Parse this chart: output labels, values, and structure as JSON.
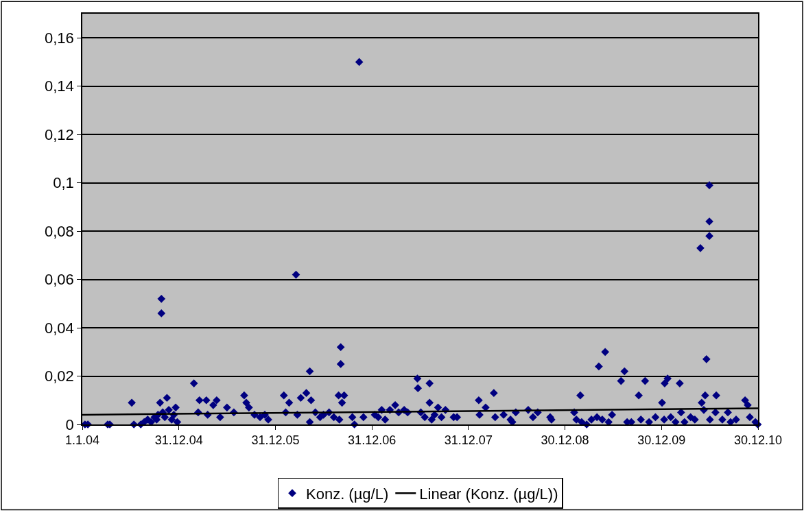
{
  "chart_data": {
    "type": "scatter",
    "xlim": [
      "2004-01-01",
      "2010-12-30"
    ],
    "xticks": [
      {
        "value": "2004-01-01",
        "label": "1.1.04"
      },
      {
        "value": "2004-12-31",
        "label": "31.12.04"
      },
      {
        "value": "2005-12-31",
        "label": "31.12.05"
      },
      {
        "value": "2006-12-31",
        "label": "31.12.06"
      },
      {
        "value": "2007-12-31",
        "label": "31.12.07"
      },
      {
        "value": "2008-12-30",
        "label": "30.12.08"
      },
      {
        "value": "2009-12-30",
        "label": "30.12.09"
      },
      {
        "value": "2010-12-30",
        "label": "30.12.10"
      }
    ],
    "ylim": [
      0,
      0.17
    ],
    "yticks": [
      0,
      {
        "value": 0.02,
        "label": "0,02"
      },
      {
        "value": 0.04,
        "label": "0,04"
      },
      {
        "value": 0.06,
        "label": "0,06"
      },
      {
        "value": 0.08,
        "label": "0,08"
      },
      {
        "value": 0.1,
        "label": "0,1"
      },
      {
        "value": 0.12,
        "label": "0,12"
      },
      {
        "value": 0.14,
        "label": "0,14"
      },
      {
        "value": 0.16,
        "label": "0,16"
      }
    ],
    "grid": "y",
    "legend": "bottom",
    "series": [
      {
        "name": "Konz. (µg/L)",
        "marker": "diamond",
        "color": "#000080",
        "x": [
          "2004-01-11",
          "2004-01-22",
          "2004-04-06",
          "2004-04-14",
          "2004-07-06",
          "2004-07-14",
          "2004-08-09",
          "2004-08-22",
          "2004-09-04",
          "2004-09-17",
          "2004-09-30",
          "2004-10-08",
          "2004-10-13",
          "2004-10-21",
          "2004-10-26",
          "2004-10-26",
          "2004-10-31",
          "2004-11-08",
          "2004-11-16",
          "2004-11-23",
          "2004-12-04",
          "2004-12-12",
          "2004-12-19",
          "2004-12-25",
          "2005-02-26",
          "2005-03-14",
          "2005-03-19",
          "2005-04-14",
          "2005-04-19",
          "2005-05-10",
          "2005-05-23",
          "2005-06-05",
          "2005-07-01",
          "2005-07-27",
          "2005-09-04",
          "2005-09-12",
          "2005-09-22",
          "2005-10-13",
          "2005-11-03",
          "2005-11-21",
          "2005-12-04",
          "2006-02-01",
          "2006-02-08",
          "2006-02-21",
          "2006-03-19",
          "2006-03-24",
          "2006-04-06",
          "2006-04-27",
          "2006-05-10",
          "2006-05-10",
          "2006-05-15",
          "2006-05-31",
          "2006-06-18",
          "2006-07-01",
          "2006-07-22",
          "2006-08-09",
          "2006-08-27",
          "2006-08-30",
          "2006-09-04",
          "2006-09-04",
          "2006-09-09",
          "2006-09-17",
          "2006-10-18",
          "2006-10-26",
          "2006-11-13",
          "2006-11-29",
          "2007-01-11",
          "2007-01-24",
          "2007-02-06",
          "2007-02-19",
          "2007-03-09",
          "2007-03-29",
          "2007-04-11",
          "2007-05-02",
          "2007-05-15",
          "2007-06-21",
          "2007-06-23",
          "2007-07-04",
          "2007-07-19",
          "2007-08-06",
          "2007-08-06",
          "2007-08-14",
          "2007-08-25",
          "2007-09-07",
          "2007-09-20",
          "2007-10-05",
          "2007-11-05",
          "2007-11-18",
          "2008-02-08",
          "2008-02-11",
          "2008-03-05",
          "2008-04-05",
          "2008-04-10",
          "2008-05-12",
          "2008-06-07",
          "2008-06-14",
          "2008-06-27",
          "2008-08-13",
          "2008-08-31",
          "2008-09-18",
          "2008-11-04",
          "2008-11-09",
          "2009-02-03",
          "2009-02-11",
          "2009-02-26",
          "2009-03-03",
          "2009-03-22",
          "2009-04-09",
          "2009-04-30",
          "2009-05-07",
          "2009-05-20",
          "2009-05-31",
          "2009-06-13",
          "2009-06-26",
          "2009-07-30",
          "2009-08-12",
          "2009-08-22",
          "2009-09-07",
          "2009-10-05",
          "2009-10-13",
          "2009-10-29",
          "2009-11-13",
          "2009-12-07",
          "2010-01-01",
          "2010-01-09",
          "2010-01-11",
          "2010-01-22",
          "2010-02-03",
          "2010-02-21",
          "2010-03-09",
          "2010-03-14",
          "2010-03-27",
          "2010-04-19",
          "2010-05-05",
          "2010-05-26",
          "2010-05-31",
          "2010-06-08",
          "2010-06-13",
          "2010-06-18",
          "2010-06-29",
          "2010-06-29",
          "2010-06-29",
          "2010-07-01",
          "2010-07-22",
          "2010-07-25",
          "2010-08-17",
          "2010-09-07",
          "2010-09-17",
          "2010-10-08",
          "2010-11-11",
          "2010-11-21",
          "2010-11-29",
          "2010-12-20",
          "2010-12-29"
        ],
        "values": [
          0,
          0,
          0,
          0,
          0.009,
          0,
          0,
          0.001,
          0.002,
          0.001,
          0.003,
          0.002,
          0.004,
          0.009,
          0.052,
          0.046,
          0.005,
          0.003,
          0.011,
          0.006,
          0.002,
          0.004,
          0.007,
          0.001,
          0.017,
          0.005,
          0.01,
          0.01,
          0.004,
          0.008,
          0.01,
          0.003,
          0.007,
          0.005,
          0.012,
          0.009,
          0.007,
          0.004,
          0.003,
          0.004,
          0.002,
          0.012,
          0.005,
          0.009,
          0.062,
          0.004,
          0.011,
          0.013,
          0.022,
          0.001,
          0.01,
          0.005,
          0.003,
          0.004,
          0.005,
          0.003,
          0.012,
          0.002,
          0.032,
          0.025,
          0.009,
          0.012,
          0.003,
          0.0,
          0.15,
          0.003,
          0.004,
          0.003,
          0.006,
          0.002,
          0.006,
          0.008,
          0.005,
          0.006,
          0.005,
          0.019,
          0.015,
          0.005,
          0.003,
          0.017,
          0.009,
          0.002,
          0.004,
          0.007,
          0.003,
          0.006,
          0.003,
          0.003,
          0.01,
          0.004,
          0.007,
          0.013,
          0.003,
          0.004,
          0.002,
          0.001,
          0.005,
          0.006,
          0.003,
          0.005,
          0.003,
          0.002,
          0.005,
          0.002,
          0.012,
          0.001,
          0.0,
          0.002,
          0.003,
          0.024,
          0.002,
          0.03,
          0.001,
          0.004,
          0.018,
          0.022,
          0.001,
          0.001,
          0.012,
          0.002,
          0.018,
          0.001,
          0.003,
          0.009,
          0.002,
          0.017,
          0.019,
          0.003,
          0.001,
          0.017,
          0.005,
          0.001,
          0.003,
          0.002,
          0.073,
          0.009,
          0.006,
          0.012,
          0.027,
          0.099,
          0.084,
          0.078,
          0.002,
          0.005,
          0.012,
          0.002,
          0.005,
          0.001,
          0.002,
          0.01,
          0.008,
          0.003,
          0.001,
          0.0
        ]
      },
      {
        "name": "Linear (Konz. (µg/L))",
        "type": "line",
        "color": "#000000",
        "line_style": "solid",
        "x": [
          "2004-01-01",
          "2010-12-30"
        ],
        "values": [
          0.004,
          0.0067
        ]
      }
    ]
  }
}
